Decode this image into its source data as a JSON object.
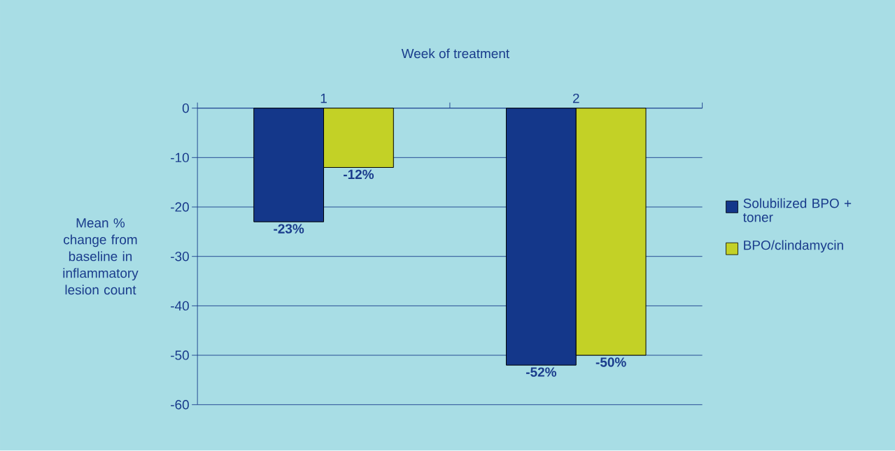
{
  "chart_data": {
    "type": "bar",
    "xlabel": "Week of treatment",
    "ylabel": "Mean % change from baseline in inflammatory lesion count",
    "categories": [
      "1",
      "2"
    ],
    "series": [
      {
        "name": "Solubilized BPO + toner",
        "color": "#14378a",
        "values": [
          -23,
          -52
        ],
        "value_labels": [
          "-23%",
          "-52%"
        ]
      },
      {
        "name": "BPO/clindamycin",
        "color": "#c3d126",
        "values": [
          -12,
          -50
        ],
        "value_labels": [
          "-12%",
          "-50%"
        ]
      }
    ],
    "ylim": [
      -60,
      0
    ],
    "yticks": [
      -60,
      -50,
      -40,
      -30,
      -20,
      -10,
      0
    ],
    "grid": "y",
    "legend": "right"
  }
}
